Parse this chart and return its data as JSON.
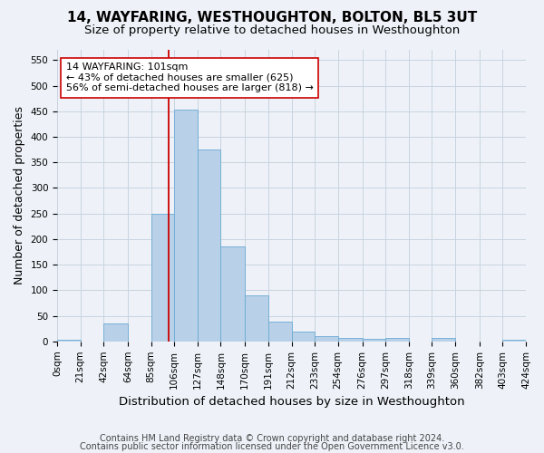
{
  "title": "14, WAYFARING, WESTHOUGHTON, BOLTON, BL5 3UT",
  "subtitle": "Size of property relative to detached houses in Westhoughton",
  "xlabel": "Distribution of detached houses by size in Westhoughton",
  "ylabel": "Number of detached properties",
  "bar_color": "#b8d0e8",
  "bar_edge_color": "#6aaad4",
  "grid_color": "#c8d4e0",
  "background_color": "#eef2f8",
  "bin_edges": [
    0,
    21,
    42,
    64,
    85,
    106,
    127,
    148,
    170,
    191,
    212,
    233,
    254,
    276,
    297,
    318,
    339,
    360,
    382,
    403,
    424
  ],
  "bin_labels": [
    "0sqm",
    "21sqm",
    "42sqm",
    "64sqm",
    "85sqm",
    "106sqm",
    "127sqm",
    "148sqm",
    "170sqm",
    "191sqm",
    "212sqm",
    "233sqm",
    "254sqm",
    "276sqm",
    "297sqm",
    "318sqm",
    "339sqm",
    "360sqm",
    "382sqm",
    "403sqm",
    "424sqm"
  ],
  "bar_heights": [
    3,
    0,
    35,
    0,
    250,
    453,
    375,
    185,
    90,
    38,
    20,
    10,
    6,
    5,
    7,
    0,
    6,
    0,
    0,
    3
  ],
  "ylim": [
    0,
    570
  ],
  "yticks": [
    0,
    50,
    100,
    150,
    200,
    250,
    300,
    350,
    400,
    450,
    500,
    550
  ],
  "vline_x": 101,
  "vline_color": "#cc0000",
  "annotation_text": "14 WAYFARING: 101sqm\n← 43% of detached houses are smaller (625)\n56% of semi-detached houses are larger (818) →",
  "annotation_box_color": "#ffffff",
  "annotation_box_edge": "#cc0000",
  "footer_line1": "Contains HM Land Registry data © Crown copyright and database right 2024.",
  "footer_line2": "Contains public sector information licensed under the Open Government Licence v3.0.",
  "title_fontsize": 11,
  "subtitle_fontsize": 9.5,
  "xlabel_fontsize": 9.5,
  "ylabel_fontsize": 9,
  "tick_fontsize": 7.5,
  "annotation_fontsize": 8,
  "footer_fontsize": 7
}
